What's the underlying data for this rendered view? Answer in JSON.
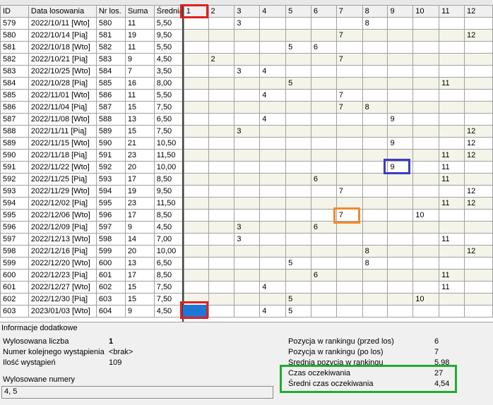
{
  "grid": {
    "columns": [
      "ID",
      "Data losowania",
      "Nr los.",
      "Suma",
      "Średnia",
      "1",
      "2",
      "3",
      "4",
      "5",
      "6",
      "7",
      "8",
      "9",
      "10",
      "11",
      "12"
    ],
    "rows": [
      [
        "579",
        "2022/10/11 [Wto]",
        "580",
        "11",
        "5,50",
        "",
        "",
        "3",
        "",
        "",
        "",
        "",
        "8",
        "",
        "",
        "",
        ""
      ],
      [
        "580",
        "2022/10/14 [Pią]",
        "581",
        "19",
        "9,50",
        "",
        "",
        "",
        "",
        "",
        "",
        "7",
        "",
        "",
        "",
        "",
        "12"
      ],
      [
        "581",
        "2022/10/18 [Wto]",
        "582",
        "11",
        "5,50",
        "",
        "",
        "",
        "",
        "5",
        "6",
        "",
        "",
        "",
        "",
        "",
        ""
      ],
      [
        "582",
        "2022/10/21 [Pią]",
        "583",
        "9",
        "4,50",
        "",
        "2",
        "",
        "",
        "",
        "",
        "7",
        "",
        "",
        "",
        "",
        ""
      ],
      [
        "583",
        "2022/10/25 [Wto]",
        "584",
        "7",
        "3,50",
        "",
        "",
        "3",
        "4",
        "",
        "",
        "",
        "",
        "",
        "",
        "",
        ""
      ],
      [
        "584",
        "2022/10/28 [Pią]",
        "585",
        "16",
        "8,00",
        "",
        "",
        "",
        "",
        "5",
        "",
        "",
        "",
        "",
        "",
        "11",
        ""
      ],
      [
        "585",
        "2022/11/01 [Wto]",
        "586",
        "11",
        "5,50",
        "",
        "",
        "",
        "4",
        "",
        "",
        "7",
        "",
        "",
        "",
        "",
        ""
      ],
      [
        "586",
        "2022/11/04 [Pią]",
        "587",
        "15",
        "7,50",
        "",
        "",
        "",
        "",
        "",
        "",
        "7",
        "8",
        "",
        "",
        "",
        ""
      ],
      [
        "587",
        "2022/11/08 [Wto]",
        "588",
        "13",
        "6,50",
        "",
        "",
        "",
        "4",
        "",
        "",
        "",
        "",
        "9",
        "",
        "",
        ""
      ],
      [
        "588",
        "2022/11/11 [Pią]",
        "589",
        "15",
        "7,50",
        "",
        "",
        "3",
        "",
        "",
        "",
        "",
        "",
        "",
        "",
        "",
        "12"
      ],
      [
        "589",
        "2022/11/15 [Wto]",
        "590",
        "21",
        "10,50",
        "",
        "",
        "",
        "",
        "",
        "",
        "",
        "",
        "9",
        "",
        "",
        "12"
      ],
      [
        "590",
        "2022/11/18 [Pią]",
        "591",
        "23",
        "11,50",
        "",
        "",
        "",
        "",
        "",
        "",
        "",
        "",
        "",
        "",
        "11",
        "12"
      ],
      [
        "591",
        "2022/11/22 [Wto]",
        "592",
        "20",
        "10,00",
        "",
        "",
        "",
        "",
        "",
        "",
        "",
        "",
        "9",
        "",
        "11",
        ""
      ],
      [
        "592",
        "2022/11/25 [Pią]",
        "593",
        "17",
        "8,50",
        "",
        "",
        "",
        "",
        "",
        "6",
        "",
        "",
        "",
        "",
        "11",
        ""
      ],
      [
        "593",
        "2022/11/29 [Wto]",
        "594",
        "19",
        "9,50",
        "",
        "",
        "",
        "",
        "",
        "",
        "7",
        "",
        "",
        "",
        "",
        "12"
      ],
      [
        "594",
        "2022/12/02 [Pią]",
        "595",
        "23",
        "11,50",
        "",
        "",
        "",
        "",
        "",
        "",
        "",
        "",
        "",
        "",
        "11",
        "12"
      ],
      [
        "595",
        "2022/12/06 [Wto]",
        "596",
        "17",
        "8,50",
        "",
        "",
        "",
        "",
        "",
        "",
        "7",
        "",
        "",
        "10",
        "",
        ""
      ],
      [
        "596",
        "2022/12/09 [Pią]",
        "597",
        "9",
        "4,50",
        "",
        "",
        "3",
        "",
        "",
        "6",
        "",
        "",
        "",
        "",
        "",
        ""
      ],
      [
        "597",
        "2022/12/13 [Wto]",
        "598",
        "14",
        "7,00",
        "",
        "",
        "3",
        "",
        "",
        "",
        "",
        "",
        "",
        "",
        "11",
        ""
      ],
      [
        "598",
        "2022/12/16 [Pią]",
        "599",
        "20",
        "10,00",
        "",
        "",
        "",
        "",
        "",
        "",
        "",
        "8",
        "",
        "",
        "",
        "12"
      ],
      [
        "599",
        "2022/12/20 [Wto]",
        "600",
        "13",
        "6,50",
        "",
        "",
        "",
        "",
        "5",
        "",
        "",
        "8",
        "",
        "",
        "",
        ""
      ],
      [
        "600",
        "2022/12/23 [Pią]",
        "601",
        "17",
        "8,50",
        "",
        "",
        "",
        "",
        "",
        "6",
        "",
        "",
        "",
        "",
        "11",
        ""
      ],
      [
        "601",
        "2022/12/27 [Wto]",
        "602",
        "15",
        "7,50",
        "",
        "",
        "",
        "4",
        "",
        "",
        "",
        "",
        "",
        "",
        "11",
        ""
      ],
      [
        "602",
        "2022/12/30 [Pią]",
        "603",
        "15",
        "7,50",
        "",
        "",
        "",
        "",
        "5",
        "",
        "",
        "",
        "",
        "10",
        "",
        ""
      ],
      [
        "603",
        "2023/01/03 [Wto]",
        "604",
        "9",
        "4,50",
        "",
        "",
        "",
        "4",
        "5",
        "",
        "",
        "",
        "",
        "",
        "",
        ""
      ]
    ]
  },
  "info": {
    "section_title": "Informacje dodatkowe",
    "left": [
      {
        "label": "Wylosowana liczba",
        "value": "1"
      },
      {
        "label": "Numer kolejnego wystąpienia",
        "value": "<brak>"
      },
      {
        "label": "Ilość wystąpień",
        "value": "109"
      }
    ],
    "right": [
      {
        "label": "Pozycja w rankingu (przed los)",
        "value": "6"
      },
      {
        "label": "Pozycja w rankingu (po los)",
        "value": "7"
      },
      {
        "label": "Średnia pozycja w rankingu",
        "value": "5,98"
      },
      {
        "label": "Czas oczekiwania",
        "value": "27"
      },
      {
        "label": "Średni czas oczekiwania",
        "value": "4,54"
      }
    ],
    "drawn_label": "Wylosowane numery",
    "drawn_value": "4, 5"
  },
  "highlight_colors": {
    "red": "#e02020",
    "blue": "#3a3ec0",
    "orange": "#f08a30",
    "green": "#22aa33",
    "selected_cell": "#1e76d6"
  }
}
